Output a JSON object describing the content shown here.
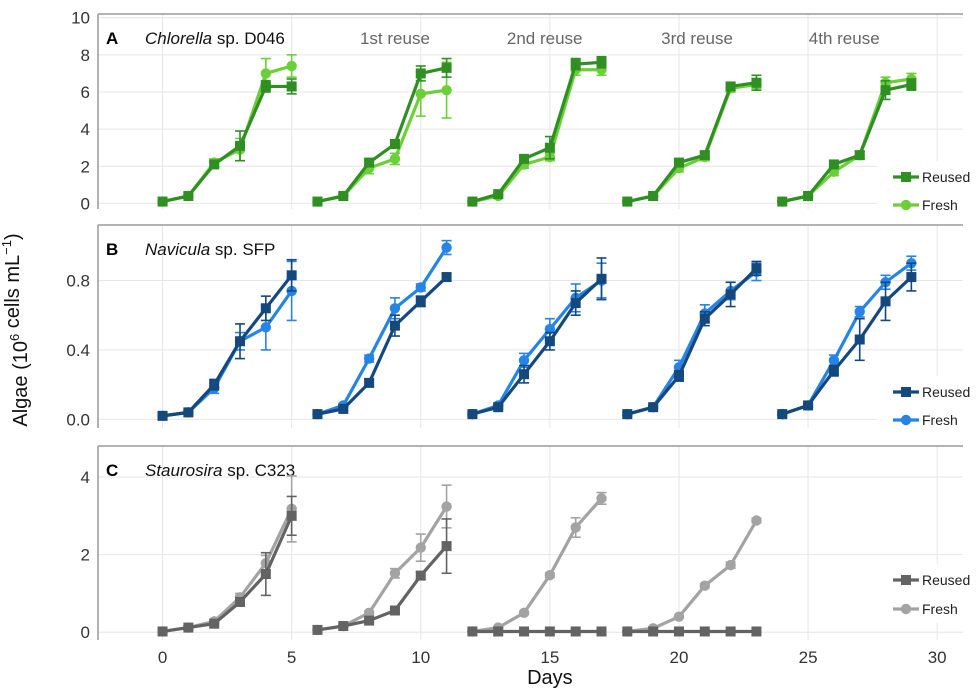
{
  "chart_data": {
    "type": "line",
    "xlabel": "Days",
    "ylabel": "Algae (10^6 cells mL^-1)",
    "xlim": [
      -2.5,
      31.0
    ],
    "xticks": [
      0,
      5,
      10,
      15,
      20,
      25,
      30
    ],
    "grid": true,
    "reuse_labels": [
      {
        "label": "1st reuse",
        "x": 9.0
      },
      {
        "label": "2nd reuse",
        "x": 14.8
      },
      {
        "label": "3rd reuse",
        "x": 20.7
      },
      {
        "label": "4th reuse",
        "x": 26.4
      }
    ],
    "legend_position": "right",
    "panels": [
      {
        "letter": "A",
        "title_italic": "Chlorella",
        "title_rest": " sp. D046",
        "ylim": [
          -0.3,
          10.2
        ],
        "yticks": [
          0,
          2,
          4,
          6,
          8,
          10
        ],
        "ytick_labels": [
          "0",
          "2",
          "4",
          "6",
          "8",
          "10"
        ],
        "show_reuse_labels": true,
        "series": [
          {
            "name": "Reused",
            "color": "#2f8f23",
            "marker": "square",
            "segments": [
              {
                "x": [
                  0,
                  1,
                  2,
                  3,
                  4,
                  5
                ],
                "y": [
                  0.1,
                  0.4,
                  2.1,
                  3.1,
                  6.3,
                  6.3
                ],
                "err": [
                  0.05,
                  0.05,
                  0.15,
                  0.8,
                  0.3,
                  0.4
                ]
              },
              {
                "x": [
                  6,
                  7,
                  8,
                  9,
                  10,
                  11
                ],
                "y": [
                  0.1,
                  0.4,
                  2.2,
                  3.2,
                  7.0,
                  7.3
                ],
                "err": [
                  0.05,
                  0.05,
                  0.15,
                  0.2,
                  0.4,
                  0.5
                ]
              },
              {
                "x": [
                  12,
                  13,
                  14,
                  15,
                  16,
                  17
                ],
                "y": [
                  0.1,
                  0.5,
                  2.4,
                  3.0,
                  7.5,
                  7.6
                ],
                "err": [
                  0.05,
                  0.05,
                  0.15,
                  0.6,
                  0.3,
                  0.3
                ]
              },
              {
                "x": [
                  18,
                  19,
                  20,
                  21,
                  22,
                  23
                ],
                "y": [
                  0.1,
                  0.4,
                  2.2,
                  2.6,
                  6.3,
                  6.5
                ],
                "err": [
                  0.05,
                  0.05,
                  0.15,
                  0.2,
                  0.2,
                  0.4
                ]
              },
              {
                "x": [
                  24,
                  25,
                  26,
                  27,
                  28,
                  29
                ],
                "y": [
                  0.1,
                  0.4,
                  2.1,
                  2.6,
                  6.1,
                  6.4
                ],
                "err": [
                  0.05,
                  0.05,
                  0.15,
                  0.2,
                  0.5,
                  0.3
                ]
              }
            ]
          },
          {
            "name": "Fresh",
            "color": "#6ccf3a",
            "marker": "circle",
            "segments": [
              {
                "x": [
                  0,
                  1,
                  2,
                  3,
                  4,
                  5
                ],
                "y": [
                  0.1,
                  0.4,
                  2.2,
                  2.9,
                  7.0,
                  7.4
                ],
                "err": [
                  0.05,
                  0.05,
                  0.2,
                  0.6,
                  0.8,
                  0.6
                ]
              },
              {
                "x": [
                  6,
                  7,
                  8,
                  9,
                  10,
                  11
                ],
                "y": [
                  0.1,
                  0.4,
                  1.9,
                  2.4,
                  5.9,
                  6.1
                ],
                "err": [
                  0.05,
                  0.05,
                  0.3,
                  0.3,
                  1.2,
                  1.5
                ]
              },
              {
                "x": [
                  12,
                  13,
                  14,
                  15,
                  16,
                  17
                ],
                "y": [
                  0.1,
                  0.4,
                  2.1,
                  2.5,
                  7.2,
                  7.2
                ],
                "err": [
                  0.05,
                  0.05,
                  0.2,
                  0.2,
                  0.3,
                  0.3
                ]
              },
              {
                "x": [
                  18,
                  19,
                  20,
                  21,
                  22,
                  23
                ],
                "y": [
                  0.1,
                  0.4,
                  1.9,
                  2.5,
                  6.2,
                  6.4
                ],
                "err": [
                  0.05,
                  0.05,
                  0.2,
                  0.2,
                  0.2,
                  0.2
                ]
              },
              {
                "x": [
                  24,
                  25,
                  26,
                  27,
                  28,
                  29
                ],
                "y": [
                  0.1,
                  0.4,
                  1.7,
                  2.6,
                  6.5,
                  6.7
                ],
                "err": [
                  0.05,
                  0.05,
                  0.2,
                  0.2,
                  0.3,
                  0.3
                ]
              }
            ]
          }
        ]
      },
      {
        "letter": "B",
        "title_italic": "Navicula",
        "title_rest": " sp. SFP",
        "ylim": [
          -0.05,
          1.12
        ],
        "yticks": [
          0.0,
          0.4,
          0.8
        ],
        "ytick_labels": [
          "0.0",
          "0.4",
          "0.8"
        ],
        "show_reuse_labels": false,
        "series": [
          {
            "name": "Reused",
            "color": "#15487d",
            "marker": "square",
            "segments": [
              {
                "x": [
                  0,
                  1,
                  2,
                  3,
                  4,
                  5
                ],
                "y": [
                  0.02,
                  0.04,
                  0.2,
                  0.45,
                  0.64,
                  0.83
                ],
                "err": [
                  0.01,
                  0.01,
                  0.03,
                  0.1,
                  0.07,
                  0.09
                ]
              },
              {
                "x": [
                  6,
                  7,
                  8,
                  9,
                  10,
                  11
                ],
                "y": [
                  0.03,
                  0.06,
                  0.21,
                  0.54,
                  0.68,
                  0.82
                ],
                "err": [
                  0.01,
                  0.01,
                  0.02,
                  0.06,
                  0.03,
                  0.02
                ]
              },
              {
                "x": [
                  12,
                  13,
                  14,
                  15,
                  16,
                  17
                ],
                "y": [
                  0.03,
                  0.07,
                  0.26,
                  0.45,
                  0.67,
                  0.81
                ],
                "err": [
                  0.01,
                  0.01,
                  0.05,
                  0.05,
                  0.07,
                  0.12
                ]
              },
              {
                "x": [
                  18,
                  19,
                  20,
                  21,
                  22,
                  23
                ],
                "y": [
                  0.03,
                  0.07,
                  0.25,
                  0.58,
                  0.72,
                  0.87
                ],
                "err": [
                  0.01,
                  0.01,
                  0.03,
                  0.04,
                  0.07,
                  0.04
                ]
              },
              {
                "x": [
                  24,
                  25,
                  26,
                  27,
                  28,
                  29
                ],
                "y": [
                  0.03,
                  0.08,
                  0.28,
                  0.46,
                  0.68,
                  0.82
                ],
                "err": [
                  0.01,
                  0.01,
                  0.03,
                  0.12,
                  0.11,
                  0.08
                ]
              }
            ]
          },
          {
            "name": "Fresh",
            "color": "#2584e5",
            "marker": "circle",
            "segments": [
              {
                "x": [
                  0,
                  1,
                  2,
                  3,
                  4,
                  5
                ],
                "y": [
                  0.02,
                  0.04,
                  0.18,
                  0.45,
                  0.53,
                  0.74
                ],
                "err": [
                  0.01,
                  0.01,
                  0.03,
                  0.05,
                  0.13,
                  0.17
                ]
              },
              {
                "x": [
                  6,
                  7,
                  8,
                  9,
                  10,
                  11
                ],
                "y": [
                  0.03,
                  0.08,
                  0.35,
                  0.64,
                  0.76,
                  0.99
                ],
                "err": [
                  0.01,
                  0.01,
                  0.02,
                  0.06,
                  0.02,
                  0.04
                ]
              },
              {
                "x": [
                  12,
                  13,
                  14,
                  15,
                  16,
                  17
                ],
                "y": [
                  0.03,
                  0.08,
                  0.34,
                  0.52,
                  0.7,
                  0.8
                ],
                "err": [
                  0.01,
                  0.01,
                  0.04,
                  0.06,
                  0.08,
                  0.1
                ]
              },
              {
                "x": [
                  18,
                  19,
                  20,
                  21,
                  22,
                  23
                ],
                "y": [
                  0.03,
                  0.07,
                  0.3,
                  0.61,
                  0.74,
                  0.85
                ],
                "err": [
                  0.01,
                  0.01,
                  0.04,
                  0.05,
                  0.05,
                  0.05
                ]
              },
              {
                "x": [
                  24,
                  25,
                  26,
                  27,
                  28,
                  29
                ],
                "y": [
                  0.03,
                  0.08,
                  0.34,
                  0.62,
                  0.79,
                  0.9
                ],
                "err": [
                  0.01,
                  0.01,
                  0.03,
                  0.03,
                  0.04,
                  0.04
                ]
              }
            ]
          }
        ]
      },
      {
        "letter": "C",
        "title_italic": "Staurosira",
        "title_rest": " sp. C323",
        "ylim": [
          -0.2,
          4.8
        ],
        "yticks": [
          0,
          2,
          4
        ],
        "ytick_labels": [
          "0",
          "2",
          "4"
        ],
        "show_reuse_labels": false,
        "series": [
          {
            "name": "Reused",
            "color": "#636363",
            "marker": "square",
            "segments": [
              {
                "x": [
                  0,
                  1,
                  2,
                  3,
                  4,
                  5
                ],
                "y": [
                  0.02,
                  0.12,
                  0.22,
                  0.78,
                  1.5,
                  3.0
                ],
                "err": [
                  0.02,
                  0.03,
                  0.05,
                  0.1,
                  0.55,
                  0.5
                ]
              },
              {
                "x": [
                  6,
                  7,
                  8,
                  9,
                  10,
                  11
                ],
                "y": [
                  0.06,
                  0.16,
                  0.3,
                  0.56,
                  1.46,
                  2.22
                ],
                "err": [
                  0.02,
                  0.03,
                  0.05,
                  0.06,
                  0.1,
                  0.7
                ]
              },
              {
                "x": [
                  12,
                  13,
                  14,
                  15,
                  16,
                  17
                ],
                "y": [
                  0.02,
                  0.02,
                  0.02,
                  0.02,
                  0.02,
                  0.02
                ],
                "err": [
                  0.02,
                  0.02,
                  0.02,
                  0.02,
                  0.02,
                  0.02
                ]
              },
              {
                "x": [
                  18,
                  19,
                  20,
                  21,
                  22,
                  23
                ],
                "y": [
                  0.02,
                  0.02,
                  0.02,
                  0.02,
                  0.02,
                  0.02
                ],
                "err": [
                  0.02,
                  0.02,
                  0.02,
                  0.02,
                  0.02,
                  0.02
                ]
              }
            ]
          },
          {
            "name": "Fresh",
            "color": "#a3a3a3",
            "marker": "circle",
            "segments": [
              {
                "x": [
                  0,
                  1,
                  2,
                  3,
                  4,
                  5
                ],
                "y": [
                  0.02,
                  0.12,
                  0.28,
                  0.9,
                  1.78,
                  3.18
                ],
                "err": [
                  0.02,
                  0.03,
                  0.05,
                  0.1,
                  0.2,
                  0.85
                ]
              },
              {
                "x": [
                  6,
                  7,
                  8,
                  9,
                  10,
                  11
                ],
                "y": [
                  0.06,
                  0.16,
                  0.5,
                  1.52,
                  2.18,
                  3.24
                ],
                "err": [
                  0.02,
                  0.03,
                  0.05,
                  0.12,
                  0.35,
                  0.55
                ]
              },
              {
                "x": [
                  12,
                  13,
                  14,
                  15,
                  16,
                  17
                ],
                "y": [
                  0.02,
                  0.12,
                  0.5,
                  1.47,
                  2.7,
                  3.45
                ],
                "err": [
                  0.02,
                  0.02,
                  0.04,
                  0.06,
                  0.25,
                  0.15
                ]
              },
              {
                "x": [
                  18,
                  19,
                  20,
                  21,
                  22,
                  23
                ],
                "y": [
                  0.02,
                  0.1,
                  0.4,
                  1.2,
                  1.73,
                  2.88
                ],
                "err": [
                  0.02,
                  0.02,
                  0.04,
                  0.05,
                  0.08,
                  0.06
                ]
              }
            ]
          }
        ]
      }
    ]
  }
}
